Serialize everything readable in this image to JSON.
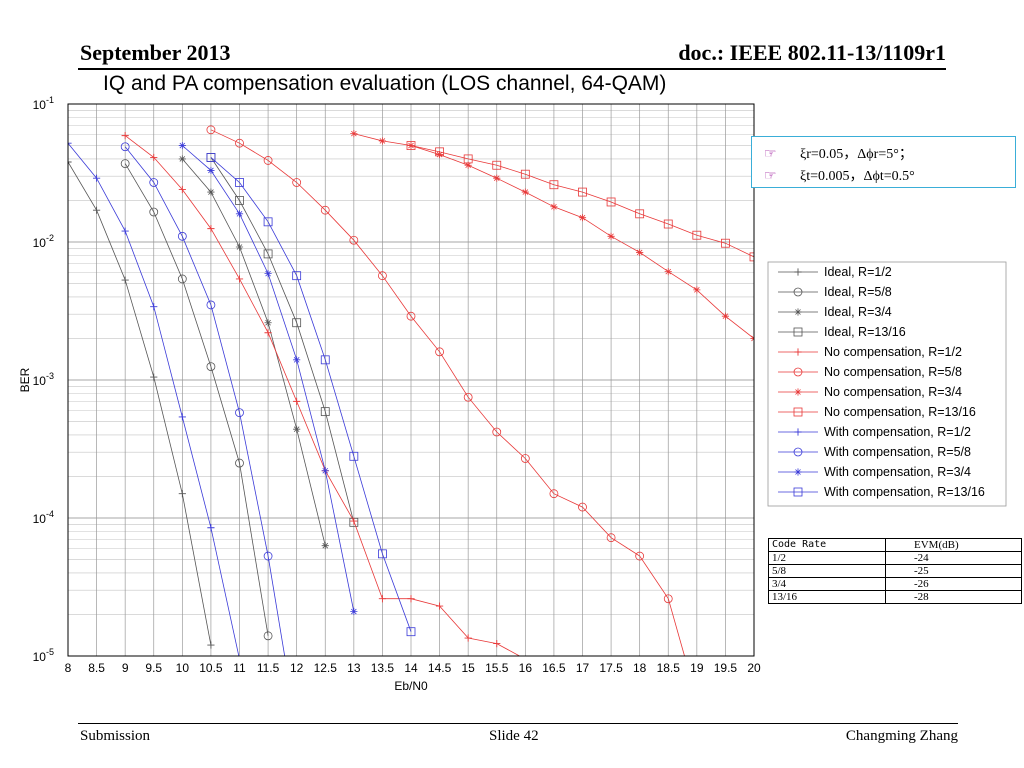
{
  "header": {
    "date": "September 2013",
    "doc": "doc.: IEEE 802.11-13/1109r1"
  },
  "slide_title": "IQ and PA compensation evaluation (LOS channel, 64-QAM)",
  "footer": {
    "left": "Submission",
    "center": "Slide 42",
    "right": "Changming Zhang"
  },
  "annotation": {
    "rows": [
      {
        "bullet": "☞",
        "text": "ξr=0.05，Δϕr=5°；"
      },
      {
        "bullet": "☞",
        "text": "ξt=0.005，Δϕt=0.5°"
      }
    ]
  },
  "evm_table": {
    "headers": [
      "Code Rate",
      "EVM(dB)"
    ],
    "rows": [
      [
        "1/2",
        "-24"
      ],
      [
        "5/8",
        "-25"
      ],
      [
        "3/4",
        "-26"
      ],
      [
        "13/16",
        "-28"
      ]
    ]
  },
  "colors": {
    "ideal": "#555555",
    "no_comp": "#e83838",
    "with_comp": "#3a3ad8"
  },
  "chart_data": {
    "type": "line",
    "xlabel": "Eb/N0",
    "ylabel": "BER",
    "xlim": [
      8,
      20
    ],
    "ylim": [
      1e-05,
      0.1
    ],
    "yscale": "log",
    "grid": true,
    "legend_position": "right",
    "x_ticks": [
      "8",
      "8.5",
      "9",
      "9.5",
      "10",
      "10.5",
      "11",
      "11.5",
      "12",
      "12.5",
      "13",
      "13.5",
      "14",
      "14.5",
      "15",
      "15.5",
      "16",
      "16.5",
      "17",
      "17.5",
      "18",
      "18.5",
      "19",
      "19.5",
      "20"
    ],
    "y_ticks": [
      {
        "value": 0.1,
        "base": "10",
        "exp": "-1"
      },
      {
        "value": 0.01,
        "base": "10",
        "exp": "-2"
      },
      {
        "value": 0.001,
        "base": "10",
        "exp": "-3"
      },
      {
        "value": 0.0001,
        "base": "10",
        "exp": "-4"
      },
      {
        "value": 1e-05,
        "base": "10",
        "exp": "-5"
      }
    ],
    "series": [
      {
        "name": "Ideal, R=1/2",
        "group": "ideal",
        "marker": "plus",
        "x": [
          8,
          8.5,
          9,
          9.5,
          10,
          10.5
        ],
        "y": [
          0.038,
          0.017,
          0.0053,
          0.00105,
          0.00015,
          1.2e-05
        ]
      },
      {
        "name": "Ideal, R=5/8",
        "group": "ideal",
        "marker": "circle",
        "x": [
          9,
          9.5,
          10,
          10.5,
          11,
          11.5
        ],
        "y": [
          0.037,
          0.0165,
          0.0054,
          0.00125,
          0.00025,
          1.4e-05
        ]
      },
      {
        "name": "Ideal, R=3/4",
        "group": "ideal",
        "marker": "star",
        "x": [
          10,
          10.5,
          11,
          11.5,
          12,
          12.5
        ],
        "y": [
          0.04,
          0.023,
          0.0092,
          0.0026,
          0.00044,
          6.3e-05
        ]
      },
      {
        "name": "Ideal, R=13/16",
        "group": "ideal",
        "marker": "square",
        "x": [
          10.5,
          11,
          11.5,
          12,
          12.5,
          13
        ],
        "y": [
          0.041,
          0.02,
          0.0082,
          0.0026,
          0.00059,
          9.3e-05
        ]
      },
      {
        "name": "No compensation, R=1/2",
        "group": "no_comp",
        "marker": "plus",
        "x": [
          9,
          9.5,
          10,
          10.5,
          11,
          11.5,
          12,
          12.5,
          13,
          13.5,
          14,
          14.5,
          15,
          15.5,
          16
        ],
        "y": [
          0.059,
          0.041,
          0.024,
          0.0125,
          0.0054,
          0.0022,
          0.0007,
          0.00022,
          9.5e-05,
          2.6e-05,
          2.6e-05,
          2.3e-05,
          1.35e-05,
          1.23e-05,
          9.5e-06
        ]
      },
      {
        "name": "No compensation, R=5/8",
        "group": "no_comp",
        "marker": "circle",
        "x": [
          10.5,
          11,
          11.5,
          12,
          12.5,
          13,
          13.5,
          14,
          14.5,
          15,
          15.5,
          16,
          16.5,
          17,
          17.5,
          18,
          18.5,
          18.8
        ],
        "y": [
          0.065,
          0.052,
          0.039,
          0.027,
          0.017,
          0.0103,
          0.0057,
          0.0029,
          0.0016,
          0.00075,
          0.00042,
          0.00027,
          0.00015,
          0.00012,
          7.2e-05,
          5.3e-05,
          2.6e-05,
          9.5e-06
        ]
      },
      {
        "name": "No compensation, R=3/4",
        "group": "no_comp",
        "marker": "star",
        "x": [
          13,
          13.5,
          14,
          14.5,
          15,
          15.5,
          16,
          16.5,
          17,
          17.5,
          18,
          18.5,
          19,
          19.5,
          20
        ],
        "y": [
          0.061,
          0.054,
          0.05,
          0.043,
          0.036,
          0.029,
          0.023,
          0.018,
          0.015,
          0.011,
          0.0084,
          0.0061,
          0.0045,
          0.0029,
          0.002
        ]
      },
      {
        "name": "No compensation, R=13/16",
        "group": "no_comp",
        "marker": "square",
        "x": [
          14,
          14.5,
          15,
          15.5,
          16,
          16.5,
          17,
          17.5,
          18,
          18.5,
          19,
          19.5,
          20
        ],
        "y": [
          0.05,
          0.045,
          0.04,
          0.036,
          0.031,
          0.026,
          0.023,
          0.0195,
          0.016,
          0.0135,
          0.0112,
          0.0098,
          0.0078
        ]
      },
      {
        "name": "With compensation, R=1/2",
        "group": "with_comp",
        "marker": "plus",
        "x": [
          8,
          8.5,
          9,
          9.5,
          10,
          10.5,
          11
        ],
        "y": [
          0.052,
          0.029,
          0.012,
          0.0034,
          0.00054,
          8.5e-05,
          9.5e-06
        ]
      },
      {
        "name": "With compensation, R=5/8",
        "group": "with_comp",
        "marker": "circle",
        "x": [
          9,
          9.5,
          10,
          10.5,
          11,
          11.5,
          11.8
        ],
        "y": [
          0.049,
          0.027,
          0.011,
          0.0035,
          0.00058,
          5.3e-05,
          9.5e-06
        ]
      },
      {
        "name": "With compensation, R=3/4",
        "group": "with_comp",
        "marker": "star",
        "x": [
          10,
          10.5,
          11,
          11.5,
          12,
          12.5,
          13
        ],
        "y": [
          0.05,
          0.033,
          0.016,
          0.0059,
          0.0014,
          0.00022,
          2.1e-05
        ]
      },
      {
        "name": "With compensation, R=13/16",
        "group": "with_comp",
        "marker": "square",
        "x": [
          10.5,
          11,
          11.5,
          12,
          12.5,
          13,
          13.5,
          14
        ],
        "y": [
          0.041,
          0.027,
          0.014,
          0.0057,
          0.0014,
          0.00028,
          5.5e-05,
          1.5e-05
        ]
      }
    ]
  }
}
